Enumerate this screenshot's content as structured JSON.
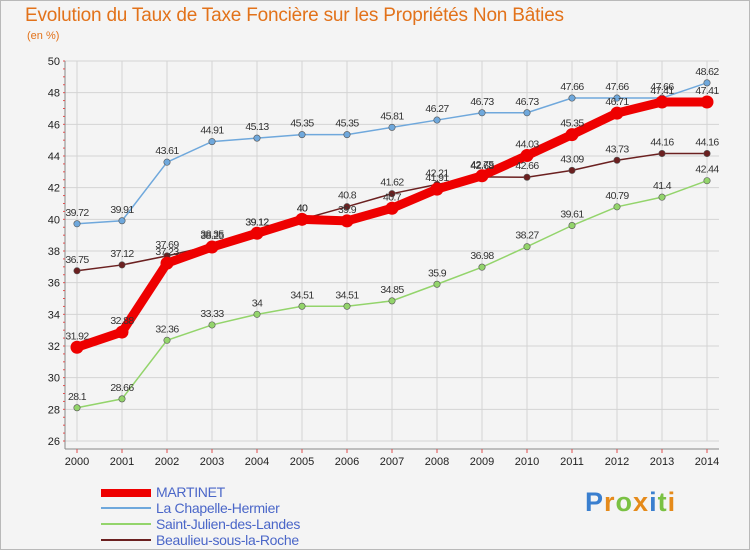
{
  "chart_data": {
    "type": "line",
    "title": "Evolution du Taux de Taxe Foncière sur les Propriétés Non Bâties",
    "subtitle": "(en %)",
    "xlabel": "",
    "ylabel": "(en %)",
    "ylim": [
      26,
      50
    ],
    "yticks": [
      26,
      28,
      30,
      32,
      34,
      36,
      38,
      40,
      42,
      44,
      46,
      48,
      50
    ],
    "x": [
      "2000",
      "2001",
      "2002",
      "2003",
      "2004",
      "2005",
      "2006",
      "2007",
      "2008",
      "2009",
      "2010",
      "2011",
      "2012",
      "2013",
      "2014"
    ],
    "grid": true,
    "series": [
      {
        "name": "MARTINET",
        "color": "#ee0000",
        "bold": true,
        "values": [
          31.92,
          32.88,
          37.23,
          38.25,
          39.12,
          40,
          39.9,
          40.7,
          41.91,
          42.75,
          44.03,
          45.35,
          46.71,
          47.41,
          47.41
        ],
        "labels": [
          "31.92",
          "32.88",
          "37.23",
          "38.25",
          "39.12",
          "40",
          "39.9",
          "40.7",
          "41.91",
          "42.75",
          "44.03",
          "45.35",
          "46.71",
          "47.41",
          "47.41"
        ]
      },
      {
        "name": "La Chapelle-Hermier",
        "color": "#6fa8dc",
        "bold": false,
        "values": [
          39.72,
          39.91,
          43.61,
          44.91,
          45.13,
          45.35,
          45.35,
          45.81,
          46.27,
          46.73,
          46.73,
          47.66,
          47.66,
          47.66,
          48.62
        ],
        "labels": [
          "39.72",
          "39.91",
          "43.61",
          "44.91",
          "45.13",
          "45.35",
          "45.35",
          "45.81",
          "46.27",
          "46.73",
          "46.73",
          "47.66",
          "47.66",
          "47.66",
          "48.62"
        ]
      },
      {
        "name": "Saint-Julien-des-Landes",
        "color": "#93d46b",
        "bold": false,
        "values": [
          28.1,
          28.66,
          32.36,
          33.33,
          34,
          34.51,
          34.51,
          34.85,
          35.9,
          36.98,
          38.27,
          39.61,
          40.79,
          41.4,
          42.44
        ],
        "labels": [
          "28.1",
          "28.66",
          "32.36",
          "33.33",
          "34",
          "34.51",
          "34.51",
          "34.85",
          "35.9",
          "36.98",
          "38.27",
          "39.61",
          "40.79",
          "41.4",
          "42.44"
        ]
      },
      {
        "name": "Beaulieu-sous-la-Roche",
        "color": "#6b2020",
        "bold": false,
        "values": [
          36.75,
          37.12,
          37.69,
          38.35,
          39.12,
          40,
          40.8,
          41.62,
          42.21,
          42.68,
          42.66,
          43.09,
          43.73,
          44.16,
          44.16
        ],
        "labels": [
          "36.75",
          "37.12",
          "37.69",
          "38.35",
          "39.12",
          "40",
          "40.8",
          "41.62",
          "42.21",
          "42.68",
          "42.66",
          "43.09",
          "43.73",
          "44.16",
          "44.16"
        ]
      }
    ]
  },
  "legend": {
    "items": [
      {
        "label": "MARTINET",
        "color": "#ee0000"
      },
      {
        "label": "La Chapelle-Hermier",
        "color": "#6fa8dc"
      },
      {
        "label": "Saint-Julien-des-Landes",
        "color": "#93d46b"
      },
      {
        "label": "Beaulieu-sous-la-Roche",
        "color": "#6b2020"
      }
    ]
  },
  "logo": {
    "letters": [
      "P",
      "r",
      "o",
      "x",
      "i",
      "t",
      "i"
    ],
    "colors": [
      "#3a7fcf",
      "#e58a1a",
      "#7ac143",
      "#e58a1a",
      "#3a7fcf",
      "#7ac143",
      "#e58a1a"
    ]
  }
}
